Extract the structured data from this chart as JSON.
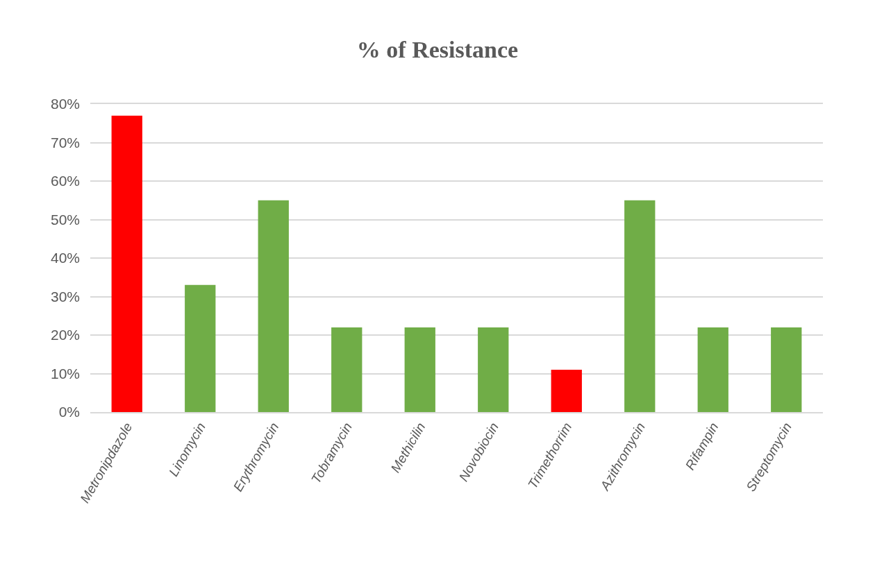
{
  "chart_data": {
    "type": "bar",
    "title": "% of Resistance",
    "categories": [
      "Metronipdazole",
      "Linomycin",
      "Erythromycin",
      "Tobramycin",
      "Methicilin",
      "Novobiocin",
      "Trimethorrim",
      "Azithromycin",
      "Rifampin",
      "Streptomycin"
    ],
    "values": [
      77,
      33,
      55,
      22,
      22,
      22,
      11,
      55,
      22,
      22
    ],
    "colors": [
      "#ff0000",
      "#70ad47",
      "#70ad47",
      "#70ad47",
      "#70ad47",
      "#70ad47",
      "#ff0000",
      "#70ad47",
      "#70ad47",
      "#70ad47"
    ],
    "ylim": [
      0,
      80
    ],
    "yticks": [
      {
        "value": 0,
        "label": "0%"
      },
      {
        "value": 10,
        "label": "10%"
      },
      {
        "value": 20,
        "label": "20%"
      },
      {
        "value": 30,
        "label": "30%"
      },
      {
        "value": 40,
        "label": "40%"
      },
      {
        "value": 50,
        "label": "50%"
      },
      {
        "value": 60,
        "label": "60%"
      },
      {
        "value": 70,
        "label": "70%"
      },
      {
        "value": 80,
        "label": "80%"
      }
    ],
    "grid": "y"
  }
}
